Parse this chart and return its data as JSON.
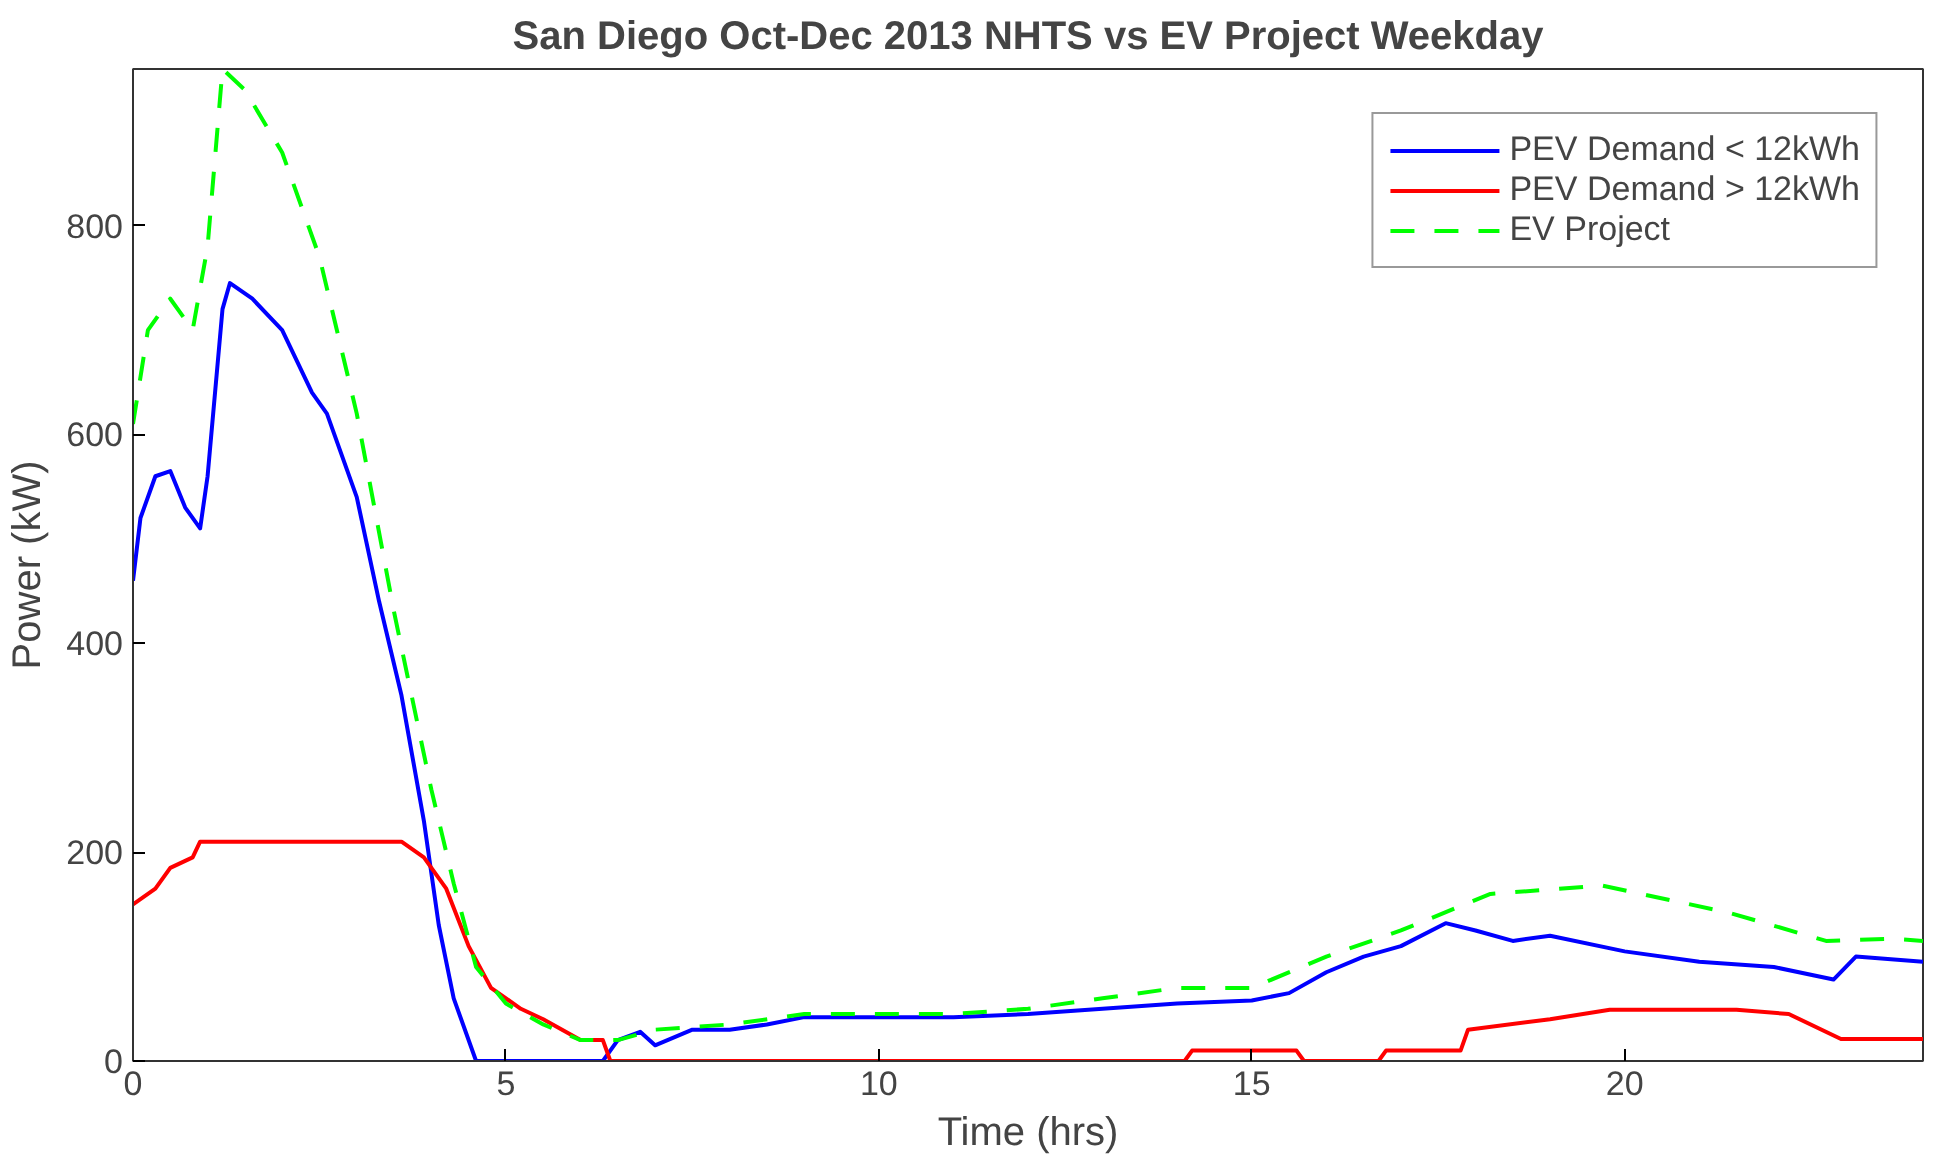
{
  "chart_data": {
    "type": "line",
    "title": "San Diego Oct-Dec 2013 NHTS vs EV Project Weekday",
    "xlabel": "Time (hrs)",
    "ylabel": "Power (kW)",
    "xlim": [
      0,
      24
    ],
    "ylim": [
      0,
      950
    ],
    "xticks": [
      0,
      5,
      10,
      15,
      20
    ],
    "yticks": [
      0,
      200,
      400,
      600,
      800
    ],
    "grid": false,
    "legend": "top right",
    "series": [
      {
        "name": "PEV Demand < 12kWh",
        "color": "#0000ff",
        "line_style": "solid",
        "x": [
          0,
          0.1,
          0.3,
          0.5,
          0.7,
          0.9,
          1.0,
          1.2,
          1.3,
          1.6,
          2.0,
          2.4,
          2.6,
          3.0,
          3.3,
          3.6,
          3.9,
          4.1,
          4.3,
          4.6,
          6.3,
          6.5,
          6.8,
          7.0,
          7.5,
          8,
          8.5,
          9,
          10,
          11,
          12,
          13,
          14,
          15,
          15.5,
          16,
          16.5,
          17,
          17.6,
          18,
          18.5,
          19,
          20,
          21,
          22,
          22.8,
          23.1,
          24
        ],
        "values": [
          460,
          520,
          560,
          565,
          530,
          510,
          560,
          720,
          745,
          730,
          700,
          640,
          620,
          540,
          440,
          350,
          230,
          130,
          60,
          0,
          0,
          20,
          28,
          15,
          30,
          30,
          35,
          42,
          42,
          42,
          45,
          50,
          55,
          58,
          65,
          85,
          100,
          110,
          132,
          125,
          115,
          120,
          105,
          95,
          90,
          78,
          100,
          95
        ]
      },
      {
        "name": "PEV Demand > 12kWh",
        "color": "#ff0000",
        "line_style": "solid",
        "x": [
          0,
          0.3,
          0.5,
          0.8,
          0.9,
          3.6,
          3.9,
          4.2,
          4.5,
          4.8,
          5.2,
          5.5,
          6.0,
          6.3,
          6.4,
          14.1,
          14.2,
          15.6,
          15.7,
          16.7,
          16.8,
          17.8,
          17.9,
          19,
          19.8,
          21.5,
          22.2,
          22.9,
          24
        ],
        "values": [
          150,
          165,
          185,
          195,
          210,
          210,
          195,
          165,
          110,
          70,
          50,
          40,
          20,
          20,
          0,
          0,
          10,
          10,
          0,
          0,
          10,
          10,
          30,
          40,
          49,
          49,
          45,
          21,
          21
        ]
      },
      {
        "name": "EV Project",
        "color": "#00ff00",
        "line_style": "dashed",
        "x": [
          0,
          0.2,
          0.5,
          0.8,
          1.0,
          1.2,
          1.5,
          2,
          2.5,
          3,
          3.5,
          4.0,
          4.3,
          4.6,
          5,
          5.5,
          6,
          6.5,
          7,
          8,
          9,
          10,
          11,
          12,
          13,
          14,
          15,
          16,
          17,
          18.2,
          19.7,
          21.4,
          22.7,
          23.6,
          24
        ],
        "values": [
          610,
          700,
          730,
          700,
          780,
          950,
          930,
          870,
          770,
          620,
          430,
          260,
          170,
          90,
          55,
          35,
          20,
          20,
          30,
          35,
          45,
          45,
          45,
          50,
          60,
          70,
          70,
          100,
          125,
          160,
          168,
          142,
          115,
          117,
          115
        ]
      }
    ]
  }
}
